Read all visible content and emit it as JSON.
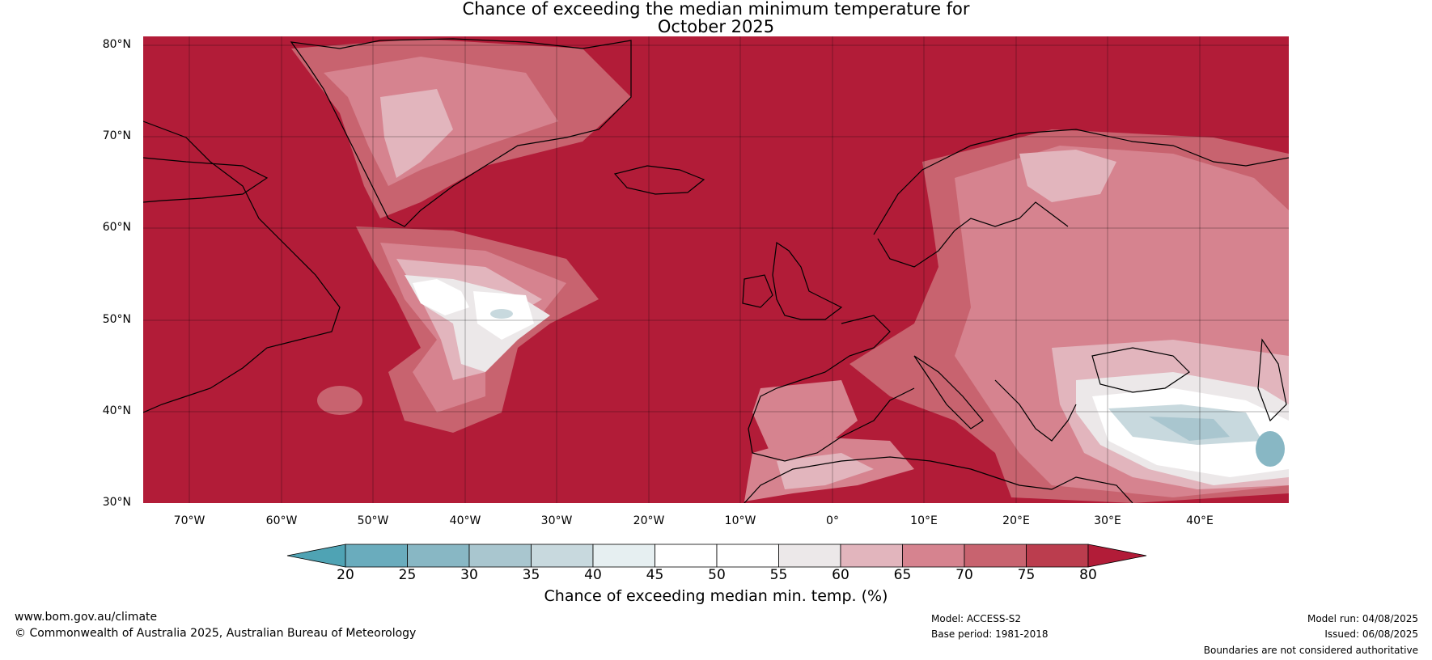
{
  "title": {
    "line1": "Chance of exceeding the median minimum temperature for",
    "line2": "October 2025"
  },
  "map": {
    "background_color": "#b21c38",
    "lat_labels": [
      "80°N",
      "70°N",
      "60°N",
      "50°N",
      "40°N",
      "30°N"
    ],
    "lon_labels": [
      "70°W",
      "60°W",
      "50°W",
      "40°W",
      "30°W",
      "20°W",
      "10°W",
      "0°",
      "10°E",
      "20°E",
      "30°E",
      "40°E"
    ]
  },
  "colorbar": {
    "ticks": [
      "20",
      "25",
      "30",
      "35",
      "40",
      "45",
      "50",
      "55",
      "60",
      "65",
      "70",
      "75",
      "80"
    ],
    "colors": [
      "#4fa3b4",
      "#6aacbd",
      "#88b7c4",
      "#a9c6cf",
      "#c8d9de",
      "#e6eff1",
      "#ffffff",
      "#ffffff",
      "#ece8e9",
      "#e2b5bd",
      "#d6838f",
      "#c8636f",
      "#bb3d4e",
      "#b21c38"
    ],
    "label": "Chance of exceeding median min. temp. (%)"
  },
  "footer": {
    "website": "www.bom.gov.au/climate",
    "copyright": "© Commonwealth of Australia 2025, Australian Bureau of Meteorology",
    "model": "Model: ACCESS-S2",
    "base_period": "Base period: 1981-2018",
    "model_run": "Model run: 04/08/2025",
    "issued": "Issued: 06/08/2025",
    "boundaries": "Boundaries are not considered authoritative"
  }
}
